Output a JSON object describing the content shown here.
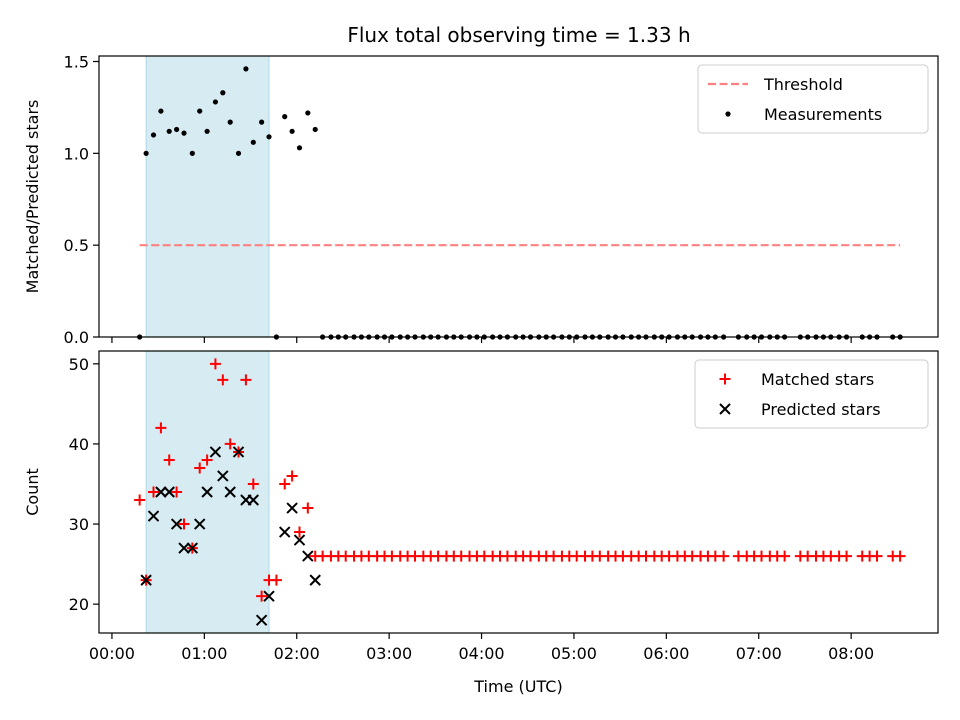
{
  "chart_data": [
    {
      "type": "scatter",
      "title": "Flux total observing time = 1.33 h",
      "xlabel": "",
      "ylabel": "Matched/Predicted stars",
      "xlim_hours": [
        -0.14,
        8.94
      ],
      "ylim": [
        0,
        1.53
      ],
      "yticks": [
        0.0,
        0.5,
        1.0,
        1.5
      ],
      "ytick_labels": [
        "0.0",
        "0.5",
        "1.0",
        "1.5"
      ],
      "legend": {
        "position": "top-right",
        "entries": [
          "Threshold",
          "Measurements"
        ]
      },
      "shaded_region_hours": [
        0.37,
        1.7
      ],
      "threshold": {
        "name": "Threshold",
        "value": 0.5,
        "x_range_hours": [
          0.3,
          8.53
        ],
        "color": "#ff8080"
      },
      "series": [
        {
          "name": "Measurements",
          "color": "#000000",
          "points": [
            [
              0.3,
              0.0
            ],
            [
              0.37,
              1.0
            ],
            [
              0.45,
              1.1
            ],
            [
              0.53,
              1.23
            ],
            [
              0.62,
              1.12
            ],
            [
              0.7,
              1.13
            ],
            [
              0.78,
              1.11
            ],
            [
              0.87,
              1.0
            ],
            [
              0.95,
              1.23
            ],
            [
              1.03,
              1.12
            ],
            [
              1.12,
              1.28
            ],
            [
              1.2,
              1.33
            ],
            [
              1.28,
              1.17
            ],
            [
              1.37,
              1.0
            ],
            [
              1.45,
              1.46
            ],
            [
              1.53,
              1.06
            ],
            [
              1.62,
              1.17
            ],
            [
              1.7,
              1.09
            ],
            [
              1.78,
              0.0
            ],
            [
              1.87,
              1.2
            ],
            [
              1.95,
              1.12
            ],
            [
              2.03,
              1.03
            ],
            [
              2.12,
              1.22
            ],
            [
              2.2,
              1.13
            ],
            [
              2.28,
              0.0
            ],
            [
              2.37,
              0.0
            ],
            [
              2.45,
              0.0
            ],
            [
              2.53,
              0.0
            ],
            [
              2.62,
              0.0
            ],
            [
              2.7,
              0.0
            ],
            [
              2.78,
              0.0
            ],
            [
              2.87,
              0.0
            ],
            [
              2.95,
              0.0
            ],
            [
              3.03,
              0.0
            ],
            [
              3.12,
              0.0
            ],
            [
              3.2,
              0.0
            ],
            [
              3.28,
              0.0
            ],
            [
              3.37,
              0.0
            ],
            [
              3.45,
              0.0
            ],
            [
              3.53,
              0.0
            ],
            [
              3.62,
              0.0
            ],
            [
              3.7,
              0.0
            ],
            [
              3.78,
              0.0
            ],
            [
              3.87,
              0.0
            ],
            [
              3.95,
              0.0
            ],
            [
              4.03,
              0.0
            ],
            [
              4.12,
              0.0
            ],
            [
              4.2,
              0.0
            ],
            [
              4.28,
              0.0
            ],
            [
              4.37,
              0.0
            ],
            [
              4.45,
              0.0
            ],
            [
              4.53,
              0.0
            ],
            [
              4.62,
              0.0
            ],
            [
              4.7,
              0.0
            ],
            [
              4.78,
              0.0
            ],
            [
              4.87,
              0.0
            ],
            [
              4.95,
              0.0
            ],
            [
              5.03,
              0.0
            ],
            [
              5.12,
              0.0
            ],
            [
              5.2,
              0.0
            ],
            [
              5.28,
              0.0
            ],
            [
              5.37,
              0.0
            ],
            [
              5.45,
              0.0
            ],
            [
              5.53,
              0.0
            ],
            [
              5.62,
              0.0
            ],
            [
              5.7,
              0.0
            ],
            [
              5.78,
              0.0
            ],
            [
              5.87,
              0.0
            ],
            [
              5.95,
              0.0
            ],
            [
              6.03,
              0.0
            ],
            [
              6.12,
              0.0
            ],
            [
              6.2,
              0.0
            ],
            [
              6.28,
              0.0
            ],
            [
              6.37,
              0.0
            ],
            [
              6.45,
              0.0
            ],
            [
              6.53,
              0.0
            ],
            [
              6.62,
              0.0
            ],
            [
              6.78,
              0.0
            ],
            [
              6.87,
              0.0
            ],
            [
              6.95,
              0.0
            ],
            [
              7.03,
              0.0
            ],
            [
              7.12,
              0.0
            ],
            [
              7.2,
              0.0
            ],
            [
              7.28,
              0.0
            ],
            [
              7.45,
              0.0
            ],
            [
              7.53,
              0.0
            ],
            [
              7.62,
              0.0
            ],
            [
              7.7,
              0.0
            ],
            [
              7.78,
              0.0
            ],
            [
              7.87,
              0.0
            ],
            [
              7.95,
              0.0
            ],
            [
              8.12,
              0.0
            ],
            [
              8.2,
              0.0
            ],
            [
              8.28,
              0.0
            ],
            [
              8.45,
              0.0
            ],
            [
              8.53,
              0.0
            ]
          ]
        }
      ]
    },
    {
      "type": "scatter",
      "title": "",
      "xlabel": "Time (UTC)",
      "ylabel": "Count",
      "xlim_hours": [
        -0.14,
        8.94
      ],
      "ylim": [
        16.4,
        51.6
      ],
      "yticks": [
        20,
        30,
        40,
        50
      ],
      "ytick_labels": [
        "20",
        "30",
        "40",
        "50"
      ],
      "xticks_hours": [
        0,
        1,
        2,
        3,
        4,
        5,
        6,
        7,
        8
      ],
      "xtick_labels": [
        "00:00",
        "01:00",
        "02:00",
        "03:00",
        "04:00",
        "05:00",
        "06:00",
        "07:00",
        "08:00"
      ],
      "legend": {
        "position": "top-right",
        "entries": [
          "Matched stars",
          "Predicted stars"
        ]
      },
      "shaded_region_hours": [
        0.37,
        1.7
      ],
      "series": [
        {
          "name": "Matched stars",
          "marker": "plus",
          "color": "#ff0000",
          "points": [
            [
              0.3,
              33
            ],
            [
              0.37,
              23
            ],
            [
              0.45,
              34
            ],
            [
              0.53,
              42
            ],
            [
              0.62,
              38
            ],
            [
              0.7,
              34
            ],
            [
              0.78,
              30
            ],
            [
              0.87,
              27
            ],
            [
              0.95,
              37
            ],
            [
              1.03,
              38
            ],
            [
              1.12,
              50
            ],
            [
              1.2,
              48
            ],
            [
              1.28,
              40
            ],
            [
              1.37,
              39
            ],
            [
              1.45,
              48
            ],
            [
              1.53,
              35
            ],
            [
              1.62,
              21
            ],
            [
              1.7,
              23
            ],
            [
              1.78,
              23
            ],
            [
              1.87,
              35
            ],
            [
              1.95,
              36
            ],
            [
              2.03,
              29
            ],
            [
              2.12,
              32
            ],
            [
              2.2,
              26
            ],
            [
              2.28,
              26
            ],
            [
              2.37,
              26
            ],
            [
              2.45,
              26
            ],
            [
              2.53,
              26
            ],
            [
              2.62,
              26
            ],
            [
              2.7,
              26
            ],
            [
              2.78,
              26
            ],
            [
              2.87,
              26
            ],
            [
              2.95,
              26
            ],
            [
              3.03,
              26
            ],
            [
              3.12,
              26
            ],
            [
              3.2,
              26
            ],
            [
              3.28,
              26
            ],
            [
              3.37,
              26
            ],
            [
              3.45,
              26
            ],
            [
              3.53,
              26
            ],
            [
              3.62,
              26
            ],
            [
              3.7,
              26
            ],
            [
              3.78,
              26
            ],
            [
              3.87,
              26
            ],
            [
              3.95,
              26
            ],
            [
              4.03,
              26
            ],
            [
              4.12,
              26
            ],
            [
              4.2,
              26
            ],
            [
              4.28,
              26
            ],
            [
              4.37,
              26
            ],
            [
              4.45,
              26
            ],
            [
              4.53,
              26
            ],
            [
              4.62,
              26
            ],
            [
              4.7,
              26
            ],
            [
              4.78,
              26
            ],
            [
              4.87,
              26
            ],
            [
              4.95,
              26
            ],
            [
              5.03,
              26
            ],
            [
              5.12,
              26
            ],
            [
              5.2,
              26
            ],
            [
              5.28,
              26
            ],
            [
              5.37,
              26
            ],
            [
              5.45,
              26
            ],
            [
              5.53,
              26
            ],
            [
              5.62,
              26
            ],
            [
              5.7,
              26
            ],
            [
              5.78,
              26
            ],
            [
              5.87,
              26
            ],
            [
              5.95,
              26
            ],
            [
              6.03,
              26
            ],
            [
              6.12,
              26
            ],
            [
              6.2,
              26
            ],
            [
              6.28,
              26
            ],
            [
              6.37,
              26
            ],
            [
              6.45,
              26
            ],
            [
              6.53,
              26
            ],
            [
              6.62,
              26
            ],
            [
              6.78,
              26
            ],
            [
              6.87,
              26
            ],
            [
              6.95,
              26
            ],
            [
              7.03,
              26
            ],
            [
              7.12,
              26
            ],
            [
              7.2,
              26
            ],
            [
              7.28,
              26
            ],
            [
              7.45,
              26
            ],
            [
              7.53,
              26
            ],
            [
              7.62,
              26
            ],
            [
              7.7,
              26
            ],
            [
              7.78,
              26
            ],
            [
              7.87,
              26
            ],
            [
              7.95,
              26
            ],
            [
              8.12,
              26
            ],
            [
              8.2,
              26
            ],
            [
              8.28,
              26
            ],
            [
              8.45,
              26
            ],
            [
              8.53,
              26
            ]
          ]
        },
        {
          "name": "Predicted stars",
          "marker": "x",
          "color": "#000000",
          "points": [
            [
              0.37,
              23
            ],
            [
              0.45,
              31
            ],
            [
              0.53,
              34
            ],
            [
              0.62,
              34
            ],
            [
              0.7,
              30
            ],
            [
              0.78,
              27
            ],
            [
              0.87,
              27
            ],
            [
              0.95,
              30
            ],
            [
              1.03,
              34
            ],
            [
              1.12,
              39
            ],
            [
              1.2,
              36
            ],
            [
              1.28,
              34
            ],
            [
              1.37,
              39
            ],
            [
              1.45,
              33
            ],
            [
              1.53,
              33
            ],
            [
              1.62,
              18
            ],
            [
              1.7,
              21
            ],
            [
              1.87,
              29
            ],
            [
              1.95,
              32
            ],
            [
              2.03,
              28
            ],
            [
              2.12,
              26
            ],
            [
              2.2,
              23
            ]
          ]
        }
      ]
    }
  ]
}
